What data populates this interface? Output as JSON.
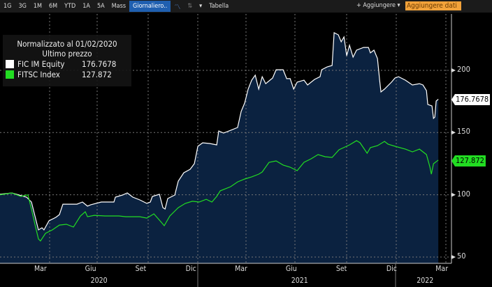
{
  "toolbar": {
    "ranges": [
      "1G",
      "3G",
      "1M",
      "6M",
      "YTD",
      "1A",
      "5A",
      "Mass"
    ],
    "frequency": "Giornaliero..",
    "chart_icon": "line-chart-icon",
    "chart_type_icon": "bar-chart-icon",
    "dropdown": "▾",
    "table": "Tabella",
    "add": "+ Aggiungere ▾",
    "add_data": "Aggiungere dati"
  },
  "legend": {
    "title": "Normalizzato al 01/02/2020",
    "subtitle": "Ultimo prezzo",
    "items": [
      {
        "name": "FIC IM Equity",
        "value": "176.7678",
        "color": "#ffffff"
      },
      {
        "name": "FITSC Index",
        "value": "127.872",
        "color": "#22dd22"
      }
    ]
  },
  "chart_data": {
    "type": "line",
    "title": "Normalizzato al 01/02/2020",
    "x_unit": "months since start (Jan 2020)",
    "ylim": [
      45,
      245
    ],
    "yticks": [
      50,
      100,
      150,
      200
    ],
    "grid": true,
    "legend_position": "top-left",
    "xticks": [
      {
        "m": 2,
        "label": "Mar"
      },
      {
        "m": 5,
        "label": "Giu"
      },
      {
        "m": 8,
        "label": "Set"
      },
      {
        "m": 11,
        "label": "Dic"
      },
      {
        "m": 14,
        "label": "Mar"
      },
      {
        "m": 17,
        "label": "Giu"
      },
      {
        "m": 20,
        "label": "Set"
      },
      {
        "m": 23,
        "label": "Dic"
      },
      {
        "m": 26,
        "label": "Mar"
      }
    ],
    "years": [
      {
        "m": 5.5,
        "label": "2020"
      },
      {
        "m": 17.5,
        "label": "2021"
      },
      {
        "m": 25,
        "label": "2022"
      }
    ],
    "series": [
      {
        "name": "FIC IM Equity",
        "color": "#ffffff",
        "last": "176.7678",
        "points": [
          [
            0,
            100.4
          ],
          [
            0.71,
            101.5
          ],
          [
            1.59,
            98.1
          ],
          [
            1.88,
            94.2
          ],
          [
            2.09,
            83
          ],
          [
            2.3,
            71.8
          ],
          [
            2.51,
            73.5
          ],
          [
            2.63,
            71.8
          ],
          [
            2.93,
            79.1
          ],
          [
            3.34,
            81.9
          ],
          [
            3.55,
            84.1
          ],
          [
            3.76,
            92.5
          ],
          [
            4.18,
            92.5
          ],
          [
            4.6,
            92.5
          ],
          [
            4.93,
            94.2
          ],
          [
            5.23,
            90.9
          ],
          [
            5.43,
            92
          ],
          [
            6.06,
            94.2
          ],
          [
            6.81,
            94.2
          ],
          [
            6.9,
            98.1
          ],
          [
            7.32,
            99.8
          ],
          [
            7.61,
            101.5
          ],
          [
            7.94,
            98.1
          ],
          [
            8.36,
            95.9
          ],
          [
            8.78,
            93.1
          ],
          [
            8.99,
            94.2
          ],
          [
            9.11,
            98.7
          ],
          [
            9.53,
            100.4
          ],
          [
            9.74,
            89.7
          ],
          [
            9.87,
            88.6
          ],
          [
            10.03,
            97
          ],
          [
            10.45,
            99.8
          ],
          [
            10.66,
            111
          ],
          [
            10.99,
            117.7
          ],
          [
            11.37,
            120.5
          ],
          [
            11.62,
            125
          ],
          [
            11.83,
            139
          ],
          [
            12.12,
            141.8
          ],
          [
            12.54,
            141.2
          ],
          [
            12.96,
            140.1
          ],
          [
            13.08,
            151.3
          ],
          [
            13.37,
            149.6
          ],
          [
            13.79,
            151.8
          ],
          [
            14.21,
            154.1
          ],
          [
            14.42,
            167
          ],
          [
            14.63,
            173.7
          ],
          [
            14.84,
            184.9
          ],
          [
            15.05,
            192.1
          ],
          [
            15.26,
            196.1
          ],
          [
            15.47,
            184.9
          ],
          [
            15.68,
            194.9
          ],
          [
            15.89,
            189.3
          ],
          [
            16.3,
            193.8
          ],
          [
            16.51,
            200.5
          ],
          [
            16.93,
            200.5
          ],
          [
            17.14,
            193.3
          ],
          [
            17.35,
            193.3
          ],
          [
            17.56,
            184.9
          ],
          [
            17.77,
            190.5
          ],
          [
            18.18,
            192.1
          ],
          [
            18.39,
            188.2
          ],
          [
            18.81,
            192.7
          ],
          [
            19.14,
            194.9
          ],
          [
            19.23,
            200.5
          ],
          [
            19.56,
            202.7
          ],
          [
            19.86,
            203.9
          ],
          [
            19.98,
            230.2
          ],
          [
            20.23,
            228.5
          ],
          [
            20.4,
            222.9
          ],
          [
            20.57,
            226.8
          ],
          [
            20.73,
            211.7
          ],
          [
            20.9,
            220.1
          ],
          [
            21.11,
            210.6
          ],
          [
            21.32,
            216.2
          ],
          [
            21.74,
            218.4
          ],
          [
            22.03,
            218.4
          ],
          [
            22.15,
            214
          ],
          [
            22.36,
            216.2
          ],
          [
            22.57,
            209.5
          ],
          [
            22.7,
            192.1
          ],
          [
            22.78,
            182.6
          ],
          [
            22.99,
            184.9
          ],
          [
            23.41,
            190.5
          ],
          [
            23.62,
            193.8
          ],
          [
            23.83,
            194.9
          ],
          [
            24.24,
            192.1
          ],
          [
            24.66,
            188.2
          ],
          [
            25.08,
            189.3
          ],
          [
            25.29,
            188.2
          ],
          [
            25.5,
            183.7
          ],
          [
            25.58,
            172.6
          ],
          [
            25.83,
            171.4
          ],
          [
            25.92,
            161.4
          ],
          [
            26,
            162.5
          ],
          [
            26.08,
            175.3
          ],
          [
            26.21,
            176.8
          ]
        ]
      },
      {
        "name": "FITSC Index",
        "color": "#22dd22",
        "last": "127.872",
        "points": [
          [
            0,
            100
          ],
          [
            0.71,
            101.5
          ],
          [
            1.25,
            98.7
          ],
          [
            1.59,
            99.8
          ],
          [
            1.67,
            99.8
          ],
          [
            1.88,
            88.6
          ],
          [
            2.09,
            76.3
          ],
          [
            2.3,
            64.5
          ],
          [
            2.42,
            62.9
          ],
          [
            2.72,
            69
          ],
          [
            3.13,
            71.8
          ],
          [
            3.55,
            75.7
          ],
          [
            3.97,
            76.3
          ],
          [
            4.39,
            74.1
          ],
          [
            4.81,
            83
          ],
          [
            5.1,
            86.4
          ],
          [
            5.23,
            82.4
          ],
          [
            5.64,
            83.5
          ],
          [
            6.27,
            83
          ],
          [
            6.69,
            83
          ],
          [
            7.11,
            83
          ],
          [
            7.52,
            82.4
          ],
          [
            8.36,
            82.4
          ],
          [
            8.78,
            81.3
          ],
          [
            9.2,
            84.7
          ],
          [
            9.61,
            78.5
          ],
          [
            9.82,
            75.2
          ],
          [
            10.16,
            83
          ],
          [
            10.66,
            89.7
          ],
          [
            11.08,
            93.1
          ],
          [
            11.5,
            94.8
          ],
          [
            11.91,
            94.2
          ],
          [
            12.33,
            96.4
          ],
          [
            12.67,
            94.2
          ],
          [
            12.96,
            98.7
          ],
          [
            13.17,
            103.2
          ],
          [
            13.79,
            106.5
          ],
          [
            14.21,
            110.4
          ],
          [
            14.63,
            112.7
          ],
          [
            15.05,
            114.4
          ],
          [
            15.47,
            116.6
          ],
          [
            15.68,
            118.3
          ],
          [
            16.09,
            126.1
          ],
          [
            16.51,
            127.2
          ],
          [
            16.93,
            123.9
          ],
          [
            17.35,
            122.2
          ],
          [
            17.77,
            119.4
          ],
          [
            18.18,
            126.1
          ],
          [
            18.6,
            128.9
          ],
          [
            19.02,
            132.3
          ],
          [
            19.44,
            130.6
          ],
          [
            19.86,
            130
          ],
          [
            20.27,
            136.2
          ],
          [
            20.9,
            140.1
          ],
          [
            21.32,
            143.5
          ],
          [
            21.53,
            141.8
          ],
          [
            21.95,
            133.4
          ],
          [
            22.15,
            137.9
          ],
          [
            22.57,
            139.5
          ],
          [
            22.99,
            142.9
          ],
          [
            23.2,
            140.7
          ],
          [
            23.62,
            139
          ],
          [
            24.24,
            136.7
          ],
          [
            24.66,
            134.5
          ],
          [
            25.08,
            136.7
          ],
          [
            25.5,
            132.3
          ],
          [
            25.71,
            122.2
          ],
          [
            25.79,
            116.6
          ],
          [
            25.92,
            125
          ],
          [
            26.21,
            127.9
          ]
        ]
      }
    ]
  }
}
